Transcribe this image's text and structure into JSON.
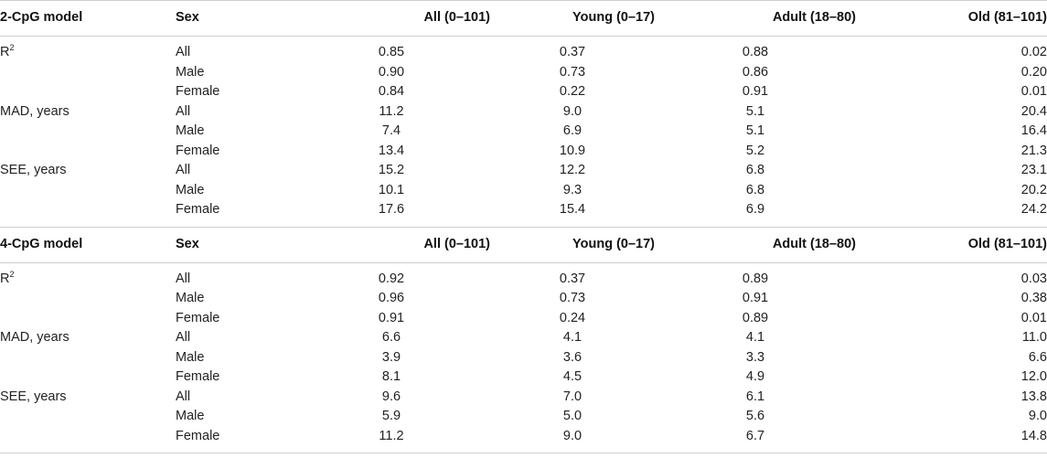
{
  "headers": {
    "model_2": "2-CpG model",
    "model_4": "4-CpG model",
    "sex": "Sex",
    "all": "All (0–101)",
    "young": "Young (0–17)",
    "adult": "Adult (18–80)",
    "old": "Old (81–101)"
  },
  "metrics": {
    "r2_base": "R",
    "r2_sup": "2",
    "mad": "MAD, years",
    "see": "SEE, years"
  },
  "sexes": {
    "all": "All",
    "male": "Male",
    "female": "Female"
  },
  "model2": {
    "r2": [
      [
        "0.85",
        "0.37",
        "0.88",
        "0.02"
      ],
      [
        "0.90",
        "0.73",
        "0.86",
        "0.20"
      ],
      [
        "0.84",
        "0.22",
        "0.91",
        "0.01"
      ]
    ],
    "mad": [
      [
        "11.2",
        "9.0",
        "5.1",
        "20.4"
      ],
      [
        "7.4",
        "6.9",
        "5.1",
        "16.4"
      ],
      [
        "13.4",
        "10.9",
        "5.2",
        "21.3"
      ]
    ],
    "see": [
      [
        "15.2",
        "12.2",
        "6.8",
        "23.1"
      ],
      [
        "10.1",
        "9.3",
        "6.8",
        "20.2"
      ],
      [
        "17.6",
        "15.4",
        "6.9",
        "24.2"
      ]
    ]
  },
  "model4": {
    "r2": [
      [
        "0.92",
        "0.37",
        "0.89",
        "0.03"
      ],
      [
        "0.96",
        "0.73",
        "0.91",
        "0.38"
      ],
      [
        "0.91",
        "0.24",
        "0.89",
        "0.01"
      ]
    ],
    "mad": [
      [
        "6.6",
        "4.1",
        "4.1",
        "11.0"
      ],
      [
        "3.9",
        "3.6",
        "3.3",
        "6.6"
      ],
      [
        "8.1",
        "4.5",
        "4.9",
        "12.0"
      ]
    ],
    "see": [
      [
        "9.6",
        "7.0",
        "6.1",
        "13.8"
      ],
      [
        "5.9",
        "5.0",
        "5.6",
        "9.0"
      ],
      [
        "11.2",
        "9.0",
        "6.7",
        "14.8"
      ]
    ]
  }
}
